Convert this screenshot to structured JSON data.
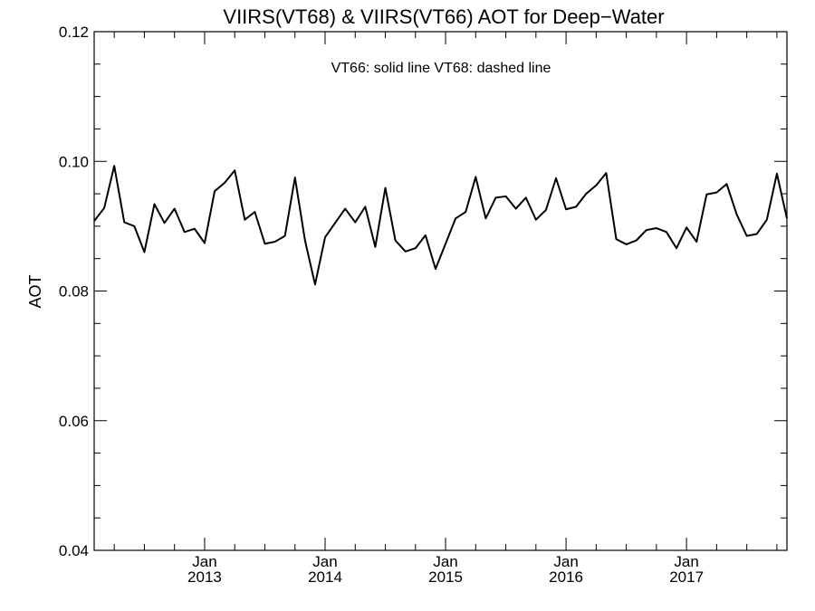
{
  "chart_data": {
    "type": "line",
    "title": "VIIRS(VT68) & VIIRS(VT66)  AOT for Deep−Water",
    "xlabel": "",
    "ylabel": "AOT",
    "annotation": "VT66: solid line   VT68: dashed line",
    "ylim": [
      0.04,
      0.12
    ],
    "yticks": [
      "0.04",
      "0.06",
      "0.08",
      "0.10",
      "0.12"
    ],
    "xlim": [
      "2012-02",
      "2017-11"
    ],
    "xticks": [
      {
        "month": "Jan",
        "year": "2013",
        "date": "2013-01"
      },
      {
        "month": "Jan",
        "year": "2014",
        "date": "2014-01"
      },
      {
        "month": "Jan",
        "year": "2015",
        "date": "2015-01"
      },
      {
        "month": "Jan",
        "year": "2016",
        "date": "2016-01"
      },
      {
        "month": "Jan",
        "year": "2017",
        "date": "2017-01"
      }
    ],
    "grid": false,
    "legend": "none",
    "series": [
      {
        "line_style": "solid",
        "color": "#000000",
        "x": [
          "2012-02",
          "2012-03",
          "2012-04",
          "2012-05",
          "2012-06",
          "2012-07",
          "2012-08",
          "2012-09",
          "2012-10",
          "2012-11",
          "2012-12",
          "2013-01",
          "2013-02",
          "2013-03",
          "2013-04",
          "2013-05",
          "2013-06",
          "2013-07",
          "2013-08",
          "2013-09",
          "2013-10",
          "2013-11",
          "2013-12",
          "2014-01",
          "2014-02",
          "2014-03",
          "2014-04",
          "2014-05",
          "2014-06",
          "2014-07",
          "2014-08",
          "2014-09",
          "2014-10",
          "2014-11",
          "2014-12",
          "2015-01",
          "2015-02",
          "2015-03",
          "2015-04",
          "2015-05",
          "2015-06",
          "2015-07",
          "2015-08",
          "2015-09",
          "2015-10",
          "2015-11",
          "2015-12",
          "2016-01",
          "2016-02",
          "2016-03",
          "2016-04",
          "2016-05",
          "2016-06",
          "2016-07",
          "2016-08",
          "2016-09",
          "2016-10",
          "2016-11",
          "2016-12",
          "2017-01",
          "2017-02",
          "2017-03",
          "2017-04",
          "2017-05",
          "2017-06",
          "2017-07",
          "2017-08",
          "2017-09",
          "2017-10",
          "2017-11"
        ],
        "values": [
          0.0908,
          0.0928,
          0.0993,
          0.0906,
          0.09,
          0.086,
          0.0934,
          0.0905,
          0.0927,
          0.0891,
          0.0896,
          0.0874,
          0.0954,
          0.0967,
          0.0986,
          0.091,
          0.0922,
          0.0873,
          0.0876,
          0.0885,
          0.0975,
          0.0878,
          0.081,
          0.0883,
          0.0905,
          0.0927,
          0.0906,
          0.093,
          0.0868,
          0.0959,
          0.0878,
          0.0861,
          0.0866,
          0.0886,
          0.0834,
          0.0873,
          0.0912,
          0.0922,
          0.0976,
          0.0912,
          0.0944,
          0.0946,
          0.0927,
          0.0944,
          0.091,
          0.0925,
          0.0974,
          0.0926,
          0.093,
          0.095,
          0.0963,
          0.0982,
          0.088,
          0.0872,
          0.0878,
          0.0894,
          0.0897,
          0.0891,
          0.0866,
          0.0898,
          0.0876,
          0.0949,
          0.0952,
          0.0965,
          0.0918,
          0.0885,
          0.0888,
          0.091,
          0.0981,
          0.0912
        ]
      }
    ]
  }
}
